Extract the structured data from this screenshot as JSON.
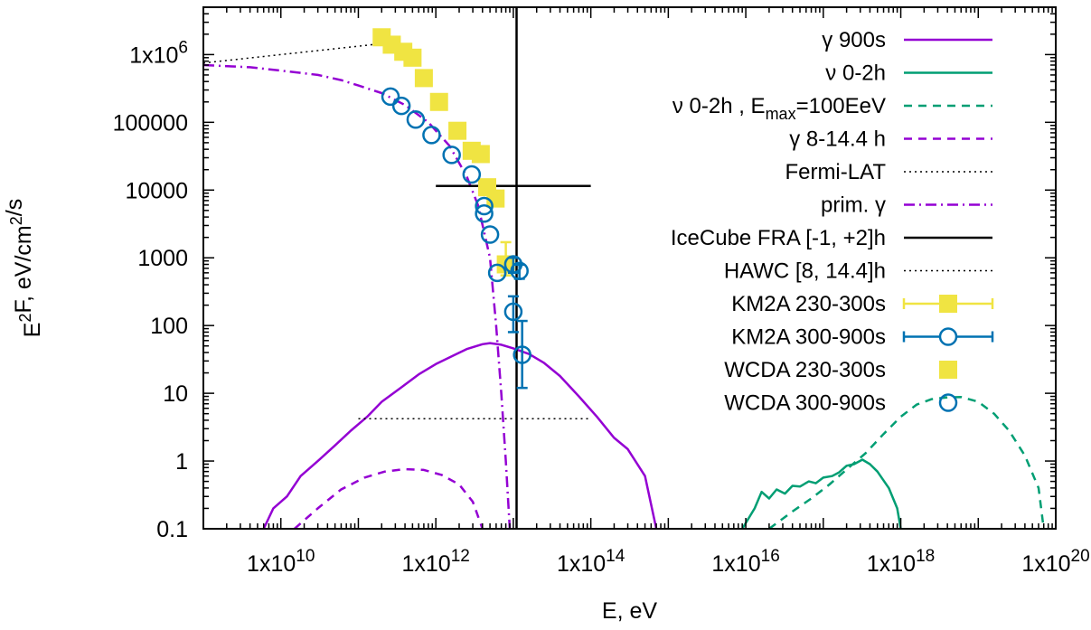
{
  "chart_data": {
    "type": "line",
    "title": "",
    "xlabel": "E, eV",
    "ylabel": "E²F, eV/cm²/s",
    "xscale": "log",
    "yscale": "log",
    "xlim": [
      1000000000.0,
      1e+20
    ],
    "ylim": [
      0.1,
      5000000.0
    ],
    "x_ticks": [
      {
        "value": 10000000000.0,
        "mant": "1x10",
        "exp": "10"
      },
      {
        "value": 1000000000000.0,
        "mant": "1x10",
        "exp": "12"
      },
      {
        "value": 100000000000000.0,
        "mant": "1x10",
        "exp": "14"
      },
      {
        "value": 1e+16,
        "mant": "1x10",
        "exp": "16"
      },
      {
        "value": 1e+18,
        "mant": "1x10",
        "exp": "18"
      },
      {
        "value": 1e+20,
        "mant": "1x10",
        "exp": "20"
      }
    ],
    "y_ticks": [
      {
        "value": 0.1,
        "label": "0.1"
      },
      {
        "value": 1,
        "label": "1"
      },
      {
        "value": 10,
        "label": "10"
      },
      {
        "value": 100,
        "label": "100"
      },
      {
        "value": 1000,
        "label": "1000"
      },
      {
        "value": 10000,
        "label": "10000"
      },
      {
        "value": 100000,
        "label": "100000"
      },
      {
        "value": 1000000,
        "label": "1x10",
        "exp": "6"
      }
    ],
    "grid": false,
    "legend_position": "top-right",
    "series": [
      {
        "name": "γ 900s",
        "style": "solid",
        "color": "#9400d3",
        "points": [
          [
            6000000000.0,
            0.1
          ],
          [
            8000000000.0,
            0.2
          ],
          [
            12000000000.0,
            0.3
          ],
          [
            18000000000.0,
            0.6
          ],
          [
            30000000000.0,
            1.0
          ],
          [
            50000000000.0,
            1.7
          ],
          [
            80000000000.0,
            2.8
          ],
          [
            130000000000.0,
            4.5
          ],
          [
            200000000000.0,
            7.5
          ],
          [
            350000000000.0,
            12
          ],
          [
            600000000000.0,
            19
          ],
          [
            1000000000000.0,
            27
          ],
          [
            1600000000000.0,
            35
          ],
          [
            2500000000000.0,
            45
          ],
          [
            4000000000000.0,
            53
          ],
          [
            5000000000000.0,
            55
          ],
          [
            7000000000000.0,
            52
          ],
          [
            10000000000000.0,
            46
          ],
          [
            16000000000000.0,
            38
          ],
          [
            25000000000000.0,
            28
          ],
          [
            40000000000000.0,
            18
          ],
          [
            70000000000000.0,
            9
          ],
          [
            120000000000000.0,
            4.5
          ],
          [
            200000000000000.0,
            2.2
          ],
          [
            300000000000000.0,
            1.5
          ],
          [
            500000000000000.0,
            0.6
          ],
          [
            700000000000000.0,
            0.1
          ]
        ]
      },
      {
        "name": "ν 0-2h",
        "style": "solid",
        "color": "#009e73",
        "points": [
          [
            9000000000000000.0,
            0.1
          ],
          [
            1.3e+16,
            0.2
          ],
          [
            1.6e+16,
            0.35
          ],
          [
            2e+16,
            0.28
          ],
          [
            2.5e+16,
            0.38
          ],
          [
            3.2e+16,
            0.33
          ],
          [
            4e+16,
            0.43
          ],
          [
            5e+16,
            0.42
          ],
          [
            6.5e+16,
            0.5
          ],
          [
            8e+16,
            0.47
          ],
          [
            1e+17,
            0.57
          ],
          [
            1.3e+17,
            0.6
          ],
          [
            1.6e+17,
            0.68
          ],
          [
            2e+17,
            0.85
          ],
          [
            2.5e+17,
            0.9
          ],
          [
            3.2e+17,
            1.05
          ],
          [
            4e+17,
            0.9
          ],
          [
            5e+17,
            0.7
          ],
          [
            7e+17,
            0.4
          ],
          [
            9e+17,
            0.2
          ],
          [
            1e+18,
            0.1
          ]
        ]
      },
      {
        "name": "ν 0-2h , E_max=100EeV",
        "label_parts": [
          {
            "t": "ν 0-2h , E"
          },
          {
            "t": "max",
            "sub": true
          },
          {
            "t": "=100EeV"
          }
        ],
        "style": "dashed",
        "color": "#009e73",
        "points": [
          [
            2e+16,
            0.1
          ],
          [
            4e+16,
            0.18
          ],
          [
            7e+16,
            0.28
          ],
          [
            1.2e+17,
            0.45
          ],
          [
            2e+17,
            0.75
          ],
          [
            3.5e+17,
            1.3
          ],
          [
            6e+17,
            2.5
          ],
          [
            1e+18,
            4.5
          ],
          [
            1.6e+18,
            6.8
          ],
          [
            2.5e+18,
            8.2
          ],
          [
            4e+18,
            8.7
          ],
          [
            6e+18,
            8.8
          ],
          [
            1e+19,
            7.5
          ],
          [
            1.6e+19,
            5
          ],
          [
            2.5e+19,
            2.8
          ],
          [
            4e+19,
            1.2
          ],
          [
            6e+19,
            0.4
          ],
          [
            7e+19,
            0.1
          ]
        ]
      },
      {
        "name": "γ 8-14.4 h",
        "style": "dashed",
        "color": "#9400d3",
        "points": [
          [
            15000000000.0,
            0.1
          ],
          [
            30000000000.0,
            0.2
          ],
          [
            60000000000.0,
            0.38
          ],
          [
            120000000000.0,
            0.57
          ],
          [
            220000000000.0,
            0.7
          ],
          [
            400000000000.0,
            0.76
          ],
          [
            700000000000.0,
            0.74
          ],
          [
            1200000000000.0,
            0.62
          ],
          [
            2000000000000.0,
            0.45
          ],
          [
            3000000000000.0,
            0.25
          ],
          [
            4000000000000.0,
            0.1
          ]
        ]
      },
      {
        "name": "Fermi-LAT",
        "style": "dotted",
        "color": "#000000",
        "points": [
          [
            1000000000.0,
            750000.0
          ],
          [
            200000000000.0,
            1450000.0
          ]
        ]
      },
      {
        "name": "prim. γ",
        "style": "dashdot",
        "color": "#9400d3",
        "points": [
          [
            1000000000.0,
            700000.0
          ],
          [
            4000000000.0,
            650000.0
          ],
          [
            10000000000.0,
            580000.0
          ],
          [
            30000000000.0,
            500000.0
          ],
          [
            60000000000.0,
            420000.0
          ],
          [
            100000000000.0,
            350000.0
          ],
          [
            200000000000.0,
            270000.0
          ],
          [
            400000000000.0,
            180000.0
          ],
          [
            800000000000.0,
            100000.0
          ],
          [
            1500000000000.0,
            45000.0
          ],
          [
            2500000000000.0,
            16000.0
          ],
          [
            3500000000000.0,
            6000.0
          ],
          [
            5000000000000.0,
            1000.0
          ],
          [
            6000000000000.0,
            100
          ],
          [
            7000000000000.0,
            10
          ],
          [
            8000000000000.0,
            1
          ],
          [
            9000000000000.0,
            0.1
          ]
        ]
      },
      {
        "name": "IceCube FRA [-1, +2]h",
        "style": "solid",
        "color": "#000000",
        "segments": [
          [
            [
              1000000000000.0,
              11500.0
            ],
            [
              100000000000000.0,
              11500.0
            ]
          ],
          [
            [
              11000000000000.0,
              0.1
            ],
            [
              11000000000000.0,
              5000000.0
            ]
          ]
        ]
      },
      {
        "name": "HAWC [8, 14.4]h",
        "style": "dotted",
        "color": "#000000",
        "points": [
          [
            100000000000.0,
            4.2
          ],
          [
            100000000000000.0,
            4.2
          ]
        ]
      }
    ],
    "point_series": [
      {
        "name": "KM2A 230-300s",
        "marker": "filled-square",
        "color": "#f0e442",
        "points": [
          [
            8000000000000.0,
            800,
            250,
            900
          ]
        ]
      },
      {
        "name": "KM2A 300-900s",
        "marker": "open-circle",
        "color": "#0072b2",
        "points": [
          [
            10000000000000.0,
            800,
            200,
            200
          ],
          [
            12000000000000.0,
            640,
            150,
            150
          ],
          [
            10000000000000.0,
            160,
            80,
            110
          ],
          [
            13000000000000.0,
            37,
            25,
            80
          ]
        ]
      },
      {
        "name": "WCDA 230-300s",
        "marker": "filled-square",
        "color": "#f0e442",
        "points": [
          [
            200000000000.0,
            1800000.0
          ],
          [
            270000000000.0,
            1400000.0
          ],
          [
            380000000000.0,
            1100000.0
          ],
          [
            500000000000.0,
            900000.0
          ],
          [
            700000000000.0,
            450000.0
          ],
          [
            1100000000000.0,
            200000.0
          ],
          [
            1900000000000.0,
            75000.0
          ],
          [
            2900000000000.0,
            38000.0
          ],
          [
            3800000000000.0,
            34000.0
          ],
          [
            4600000000000.0,
            11000.0
          ],
          [
            5900000000000.0,
            7500.0
          ]
        ]
      },
      {
        "name": "WCDA 300-900s",
        "marker": "open-circle",
        "color": "#0072b2",
        "points": [
          [
            260000000000.0,
            240000.0
          ],
          [
            360000000000.0,
            175000.0
          ],
          [
            550000000000.0,
            110000.0
          ],
          [
            880000000000.0,
            65000.0
          ],
          [
            1600000000000.0,
            33000.0
          ],
          [
            2900000000000.0,
            17000.0
          ],
          [
            4200000000000.0,
            5800.0
          ],
          [
            4200000000000.0,
            4500.0
          ],
          [
            5000000000000.0,
            2200.0
          ],
          [
            6200000000000.0,
            600
          ]
        ]
      }
    ]
  }
}
